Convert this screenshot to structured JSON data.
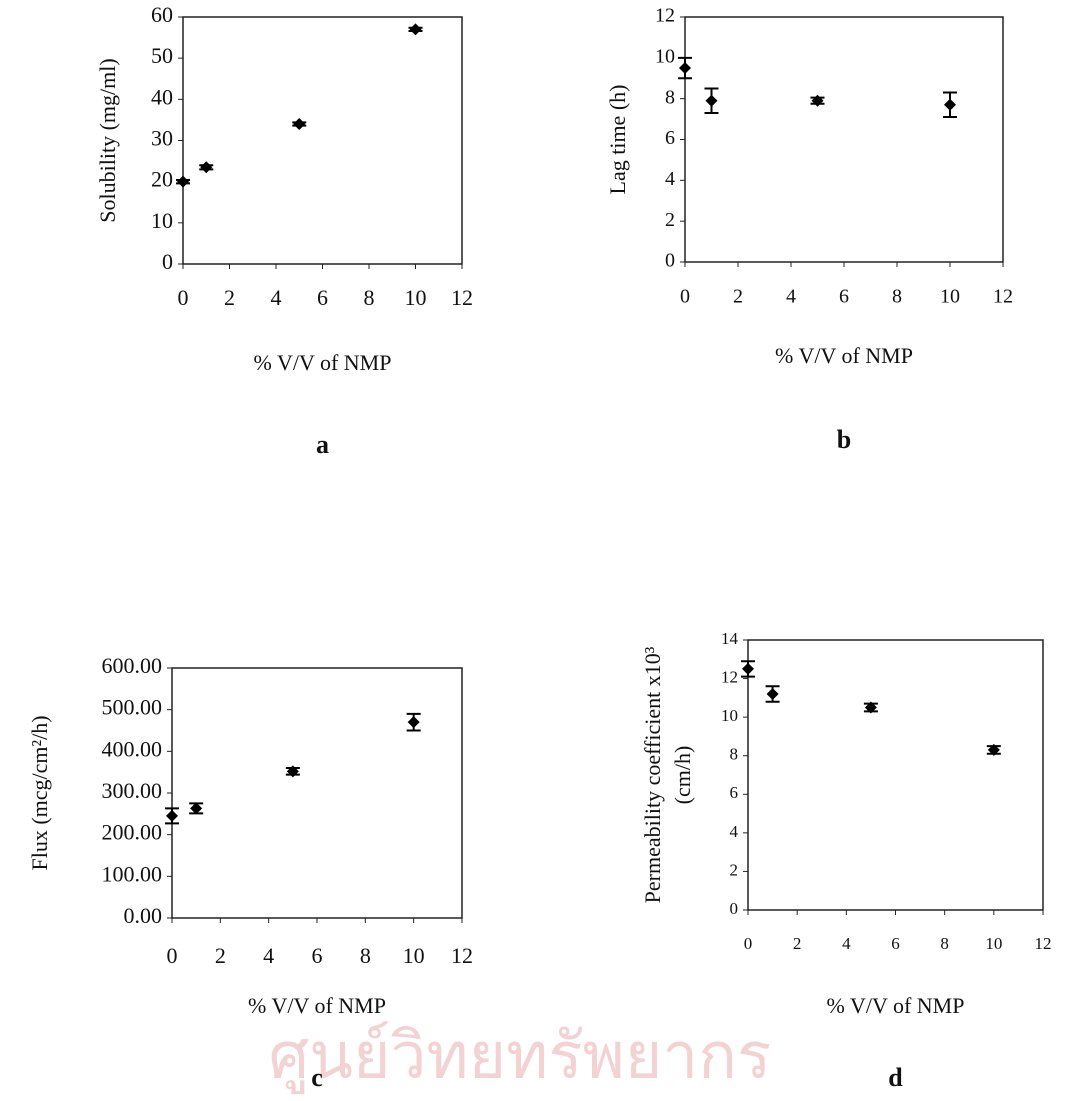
{
  "watermark": "ศูนย์วิทยทรัพยากร",
  "chart_data": [
    {
      "type": "scatter",
      "panel_label": "a",
      "y_label": "Solubility (mg/ml)",
      "x_label": "% V/V of NMP",
      "x": [
        0,
        1,
        5,
        10
      ],
      "values": [
        20,
        23.5,
        34,
        57
      ],
      "errors": [
        0.4,
        0.5,
        0.4,
        0.4
      ],
      "color": "#000000",
      "xlim": [
        0,
        12
      ],
      "xticks": [
        0,
        2,
        4,
        6,
        8,
        10,
        12
      ],
      "ylim": [
        0,
        60
      ],
      "yticks": [
        0,
        10,
        20,
        30,
        40,
        50,
        60
      ]
    },
    {
      "type": "scatter",
      "panel_label": "b",
      "y_label": "Lag time (h)",
      "x_label": "% V/V of NMP",
      "x": [
        0,
        1,
        5,
        10
      ],
      "values": [
        9.5,
        7.9,
        7.9,
        7.7
      ],
      "errors": [
        0.5,
        0.6,
        0.15,
        0.6
      ],
      "color": "#000000",
      "xlim": [
        0,
        12
      ],
      "xticks": [
        0,
        2,
        4,
        6,
        8,
        10,
        12
      ],
      "ylim": [
        0,
        12
      ],
      "yticks": [
        0,
        2,
        4,
        6,
        8,
        10,
        12
      ]
    },
    {
      "type": "scatter",
      "panel_label": "c",
      "y_label": "Flux (mcg/cm²/h)",
      "x_label": "% V/V of NMP",
      "x": [
        0,
        1,
        5,
        10
      ],
      "values": [
        245,
        263,
        352,
        470
      ],
      "errors": [
        18,
        12,
        8,
        20
      ],
      "color": "#000000",
      "xlim": [
        0,
        12
      ],
      "xticks": [
        0,
        2,
        4,
        6,
        8,
        10,
        12
      ],
      "ylim": [
        0,
        600
      ],
      "yticks": [
        {
          "value": 0,
          "label": "0.00"
        },
        {
          "value": 100,
          "label": "100.00"
        },
        {
          "value": 200,
          "label": "200.00"
        },
        {
          "value": 300,
          "label": "300.00"
        },
        {
          "value": 400,
          "label": "400.00"
        },
        {
          "value": 500,
          "label": "500.00"
        },
        {
          "value": 600,
          "label": "600.00"
        }
      ]
    },
    {
      "type": "scatter",
      "panel_label": "d",
      "y_label": [
        "Permeability coefficient  x10³",
        "(cm/h)"
      ],
      "x_label": "% V/V of NMP",
      "x": [
        0,
        1,
        5,
        10
      ],
      "values": [
        12.5,
        11.2,
        10.5,
        8.3
      ],
      "errors": [
        0.4,
        0.4,
        0.2,
        0.2
      ],
      "color": "#000000",
      "xlim": [
        0,
        12
      ],
      "xticks": [
        0,
        2,
        4,
        6,
        8,
        10,
        12
      ],
      "ylim": [
        0,
        14
      ],
      "yticks": [
        0,
        2,
        4,
        6,
        8,
        10,
        12,
        14
      ]
    }
  ]
}
